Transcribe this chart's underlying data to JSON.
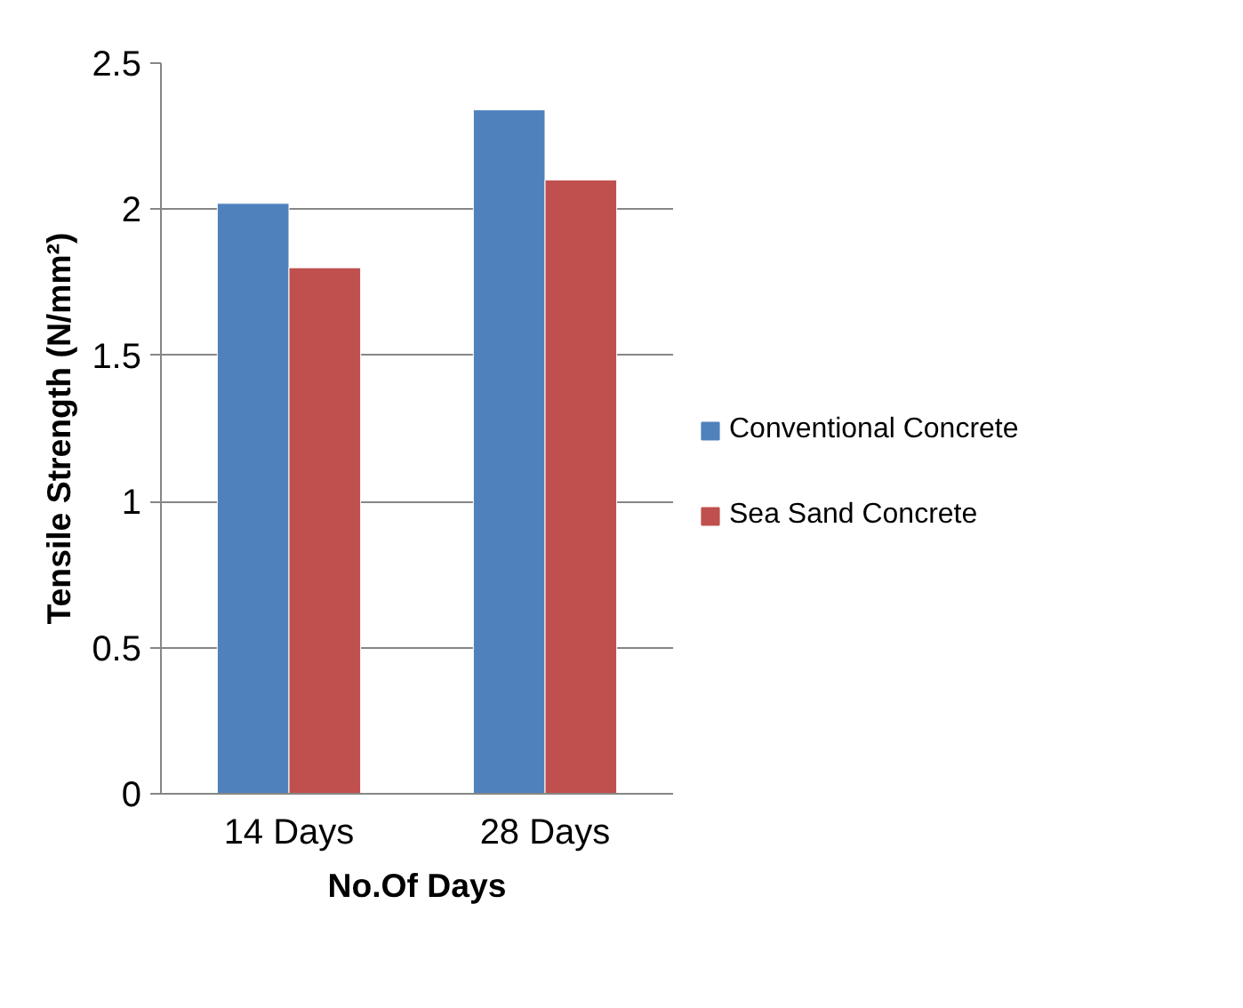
{
  "chart_data": {
    "type": "bar",
    "xlabel": "No.Of Days",
    "ylabel": "Tensile Strength (N/mm²)",
    "categories": [
      "14 Days",
      "28 Days"
    ],
    "series": [
      {
        "name": "Conventional Concrete",
        "color": "#4f81bd",
        "values": [
          2.02,
          2.34
        ]
      },
      {
        "name": "Sea Sand Concrete",
        "color": "#c0504d",
        "values": [
          1.8,
          2.1
        ]
      }
    ],
    "ylim": [
      0,
      2.5
    ],
    "yticks": [
      0,
      0.5,
      1,
      1.5,
      2,
      2.5
    ],
    "grid": "y",
    "legend": "right"
  }
}
